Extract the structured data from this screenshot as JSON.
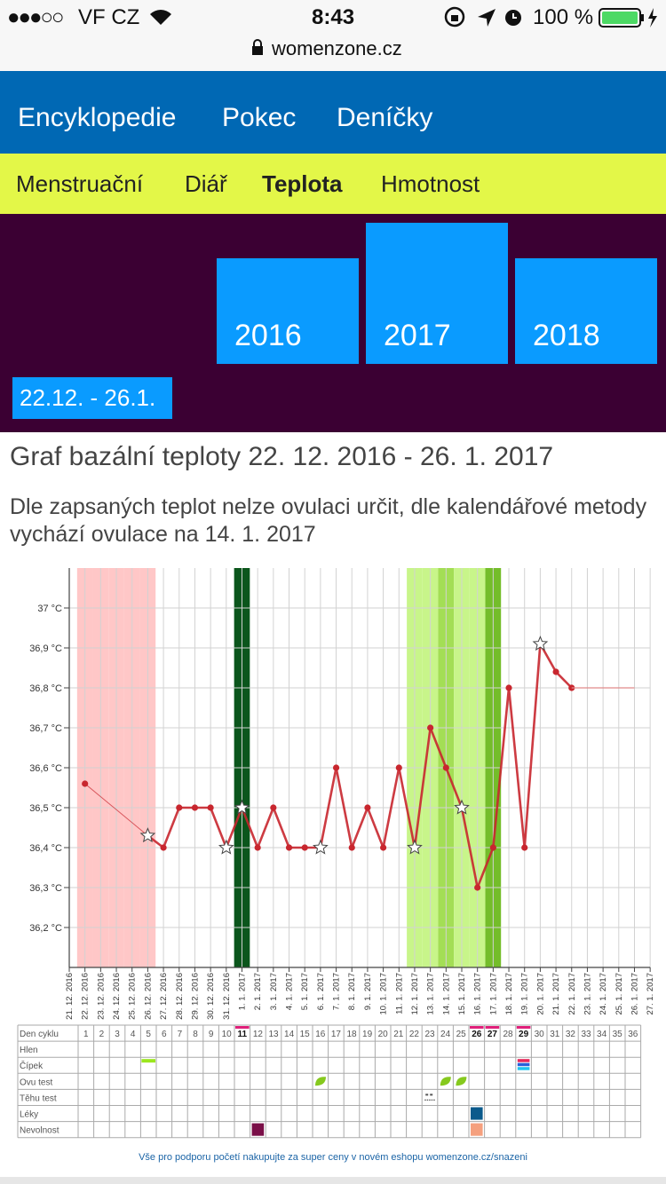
{
  "status": {
    "signal": "●●●○○",
    "carrier": "VF CZ",
    "time": "8:43",
    "battery": "100 %",
    "url": "womenzone.cz"
  },
  "nav": [
    "Encyklopedie",
    "Pokec",
    "Deníčky"
  ],
  "subnav": [
    "Menstruační",
    "Diář",
    "Teplota",
    "Hmotnost"
  ],
  "years": [
    "2016",
    "2017",
    "2018"
  ],
  "period": "22.12. - 26.1.",
  "heading": "Graf bazální teploty 22. 12. 2016 - 26. 1. 2017",
  "description": "Dle zapsaných teplot nelze ovulaci určit, dle kalendářové metody vychází ovulace na 14. 1. 2017",
  "chart_data": {
    "type": "line",
    "categories": [
      "21. 12. 2016",
      "22. 12. 2016",
      "23. 12. 2016",
      "24. 12. 2016",
      "25. 12. 2016",
      "26. 12. 2016",
      "27. 12. 2016",
      "28. 12. 2016",
      "29. 12. 2016",
      "30. 12. 2016",
      "31. 12. 2016",
      "1. 1. 2017",
      "2. 1. 2017",
      "3. 1. 2017",
      "4. 1. 2017",
      "5. 1. 2017",
      "6. 1. 2017",
      "7. 1. 2017",
      "8. 1. 2017",
      "9. 1. 2017",
      "10. 1. 2017",
      "11. 1. 2017",
      "12. 1. 2017",
      "13. 1. 2017",
      "14. 1. 2017",
      "15. 1. 2017",
      "16. 1. 2017",
      "17. 1. 2017",
      "18. 1. 2017",
      "19. 1. 2017",
      "20. 1. 2017",
      "21. 1. 2017",
      "22. 1. 2017",
      "23. 1. 2017",
      "24. 1. 2017",
      "25. 1. 2017",
      "26. 1. 2017",
      "27. 1. 2017"
    ],
    "series": [
      {
        "color": "#c8262e",
        "values": [
          null,
          36.56,
          null,
          null,
          null,
          36.43,
          36.4,
          36.5,
          36.5,
          36.5,
          36.4,
          36.5,
          36.4,
          36.5,
          36.4,
          36.4,
          36.4,
          36.6,
          36.4,
          36.5,
          36.4,
          36.6,
          36.4,
          36.7,
          36.6,
          36.5,
          36.3,
          36.4,
          36.8,
          36.4,
          36.91,
          36.84,
          36.8,
          null,
          null,
          null,
          null,
          null
        ],
        "markers": [
          null,
          "dot",
          null,
          null,
          null,
          "star",
          "dot",
          "dot",
          "dot",
          "dot",
          "star",
          "star",
          "dot",
          "dot",
          "dot",
          "dot",
          "star",
          "dot",
          "dot",
          "dot",
          "dot",
          "dot",
          "star",
          "dot",
          "dot",
          "star",
          "dot",
          "dot",
          "dot",
          "dot",
          "star",
          "dot",
          "dot",
          null,
          null,
          null,
          null,
          null
        ]
      },
      {
        "color": "#e08a8a",
        "values": [
          null,
          null,
          null,
          null,
          null,
          null,
          null,
          null,
          null,
          null,
          null,
          null,
          null,
          null,
          null,
          null,
          null,
          null,
          null,
          null,
          null,
          null,
          null,
          null,
          null,
          null,
          null,
          null,
          null,
          null,
          null,
          null,
          36.8,
          36.8,
          36.8,
          36.8,
          36.8,
          null
        ]
      }
    ],
    "column_colors": [
      null,
      "#ffc7c7",
      "#ffc7c7",
      "#ffc7c7",
      "#ffc7c7",
      "#ffc7c7",
      null,
      null,
      null,
      null,
      null,
      "#0b561c",
      null,
      null,
      null,
      null,
      null,
      null,
      null,
      null,
      null,
      null,
      "#c8f58a",
      "#c8f58a",
      "#a3de55",
      "#c8f58a",
      "#c8f58a",
      "#74bd2a",
      null,
      null,
      null,
      null,
      null,
      null,
      null,
      null,
      null,
      null
    ],
    "ylim": [
      36.1,
      37.1
    ],
    "yticks": [
      {
        "value": 36.2,
        "label": "36,2 °C"
      },
      {
        "value": 36.3,
        "label": "36,3 °C"
      },
      {
        "value": 36.4,
        "label": "36,4 °C"
      },
      {
        "value": 36.5,
        "label": "36,5 °C"
      },
      {
        "value": 36.6,
        "label": "36,6 °C"
      },
      {
        "value": 36.7,
        "label": "36,7 °C"
      },
      {
        "value": 36.8,
        "label": "36,8 °C"
      },
      {
        "value": 36.9,
        "label": "36,9 °C"
      },
      {
        "value": 37,
        "label": "37 °C"
      }
    ],
    "grid": true
  },
  "table": {
    "rows": [
      "Den cyklu",
      "Hlen",
      "Čípek",
      "Ovu test",
      "Těhu test",
      "Léky",
      "Nevolnost"
    ],
    "days": [
      1,
      2,
      3,
      4,
      5,
      6,
      7,
      8,
      9,
      10,
      11,
      12,
      13,
      14,
      15,
      16,
      17,
      18,
      19,
      20,
      21,
      22,
      23,
      24,
      25,
      26,
      27,
      28,
      29,
      30,
      31,
      32,
      33,
      34,
      35,
      36
    ],
    "highlighted_days": [
      11,
      26,
      27,
      29
    ],
    "highlight_color": "#e0207a",
    "entries": [
      {
        "row": 2,
        "day": 5,
        "shape": "bar",
        "colors": [
          "#9be61e"
        ]
      },
      {
        "row": 2,
        "day": 29,
        "shape": "stripes",
        "colors": [
          "#e8265a",
          "#2a5fd8",
          "#22c4ee"
        ]
      },
      {
        "row": 3,
        "day": 16,
        "shape": "leaf",
        "colors": [
          "#86c91e"
        ]
      },
      {
        "row": 3,
        "day": 24,
        "shape": "leaf",
        "colors": [
          "#86c91e"
        ]
      },
      {
        "row": 3,
        "day": 25,
        "shape": "leaf",
        "colors": [
          "#86c91e"
        ]
      },
      {
        "row": 4,
        "day": 23,
        "shape": "test",
        "colors": [
          "#555555"
        ]
      },
      {
        "row": 5,
        "day": 26,
        "shape": "square",
        "colors": [
          "#0b5a8c"
        ]
      },
      {
        "row": 6,
        "day": 12,
        "shape": "square",
        "colors": [
          "#7a0f48"
        ]
      },
      {
        "row": 6,
        "day": 26,
        "shape": "square",
        "colors": [
          "#f5a07e"
        ]
      }
    ]
  },
  "footer": "Vše pro podporu početí nakupujte za super ceny v novém eshopu womenzone.cz/snazeni"
}
